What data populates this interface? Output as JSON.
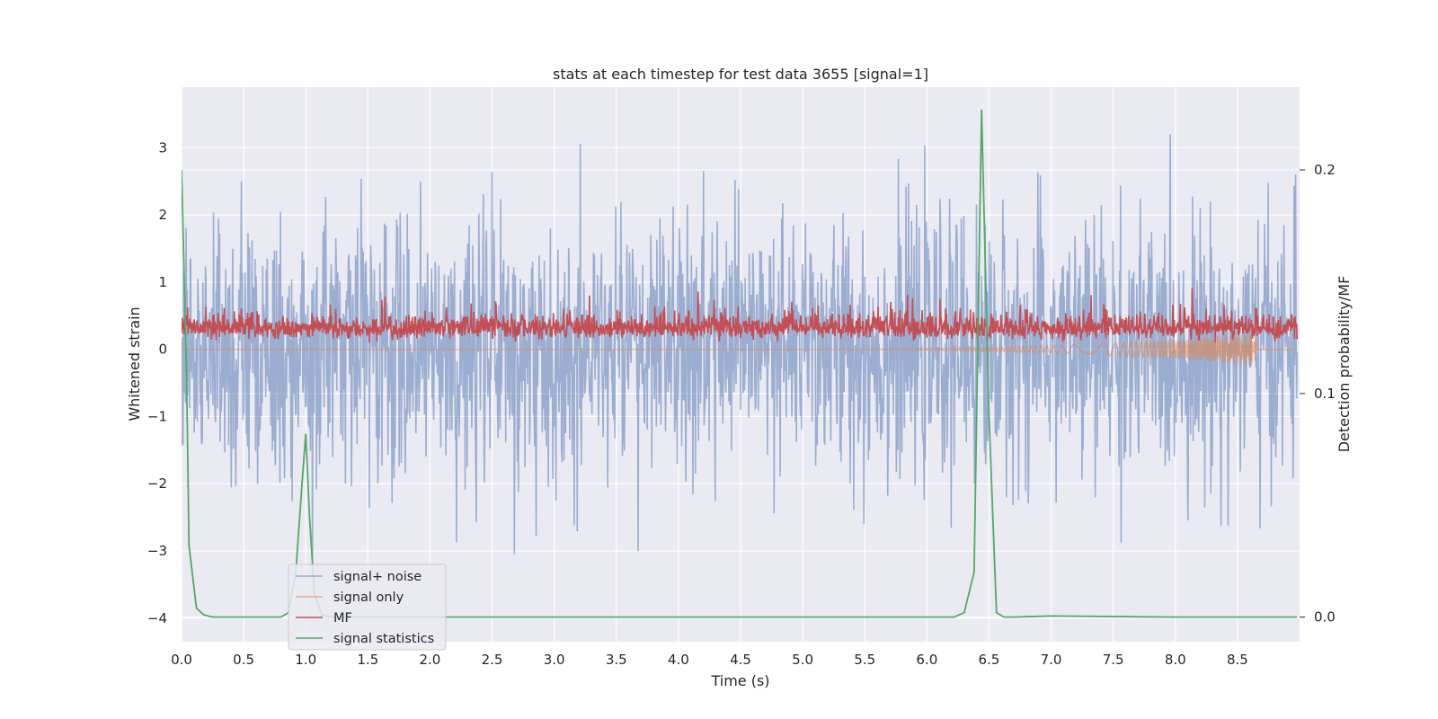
{
  "chart_data": {
    "type": "line",
    "title": "stats at each timestep for test data 3655 [signal=1]",
    "xlabel": "Time (s)",
    "ylabel": "Whitened strain",
    "y2label": "Detection probability/MF",
    "xlim": [
      0.0,
      9.0
    ],
    "ylim": [
      -4.35,
      3.9
    ],
    "y2lim": [
      -0.011,
      0.237
    ],
    "xticks": [
      0.0,
      0.5,
      1.0,
      1.5,
      2.0,
      2.5,
      3.0,
      3.5,
      4.0,
      4.5,
      5.0,
      5.5,
      6.0,
      6.5,
      7.0,
      7.5,
      8.0,
      8.5
    ],
    "xtick_labels": [
      "0.0",
      "0.5",
      "1.0",
      "1.5",
      "2.0",
      "2.5",
      "3.0",
      "3.5",
      "4.0",
      "4.5",
      "5.0",
      "5.5",
      "6.0",
      "6.5",
      "7.0",
      "7.5",
      "8.0",
      "8.5"
    ],
    "yticks": [
      3,
      2,
      1,
      0,
      -1,
      -2,
      -3,
      -4
    ],
    "ytick_labels": [
      "3",
      "2",
      "1",
      "0",
      "−1",
      "−2",
      "−3",
      "−4"
    ],
    "y2ticks": [
      0.2,
      0.1,
      0.0
    ],
    "y2tick_labels": [
      "0.2",
      "0.1",
      "0.0"
    ],
    "grid": true,
    "legend_position": "lower-left",
    "series": [
      {
        "name": "signal+ noise",
        "axis": "left",
        "color": "#4c72b0",
        "kind": "noise",
        "description_range": [
          -3.3,
          3.2
        ],
        "std": 0.95
      },
      {
        "name": "signal only",
        "axis": "left",
        "color": "#dd8452",
        "kind": "chirp",
        "start": 5.0,
        "end": 8.65,
        "min_value": -0.25
      },
      {
        "name": "MF",
        "axis": "left",
        "color": "#c44e52",
        "kind": "mf",
        "mean": 0.22,
        "max_value": 1.0
      },
      {
        "name": "signal statistics",
        "axis": "right",
        "color": "#55a868",
        "x": [
          0.0,
          0.04,
          0.06,
          0.12,
          0.18,
          0.25,
          0.4,
          0.6,
          0.8,
          0.86,
          0.92,
          0.97,
          1.0,
          1.03,
          1.07,
          1.13,
          1.2,
          1.5,
          2.0,
          3.0,
          4.0,
          5.0,
          6.0,
          6.22,
          6.3,
          6.38,
          6.44,
          6.5,
          6.56,
          6.62,
          6.7,
          7.0,
          8.0,
          8.98
        ],
        "y": [
          0.2,
          0.11,
          0.032,
          0.004,
          0.001,
          0.0,
          0.0,
          0.0,
          0.0,
          0.002,
          0.02,
          0.06,
          0.082,
          0.045,
          0.01,
          0.001,
          0.0,
          0.0,
          0.0,
          0.0,
          0.0,
          0.0,
          0.0,
          0.0,
          0.002,
          0.02,
          0.227,
          0.09,
          0.002,
          0.0,
          0.0,
          0.0005,
          0.0,
          0.0
        ]
      }
    ]
  }
}
